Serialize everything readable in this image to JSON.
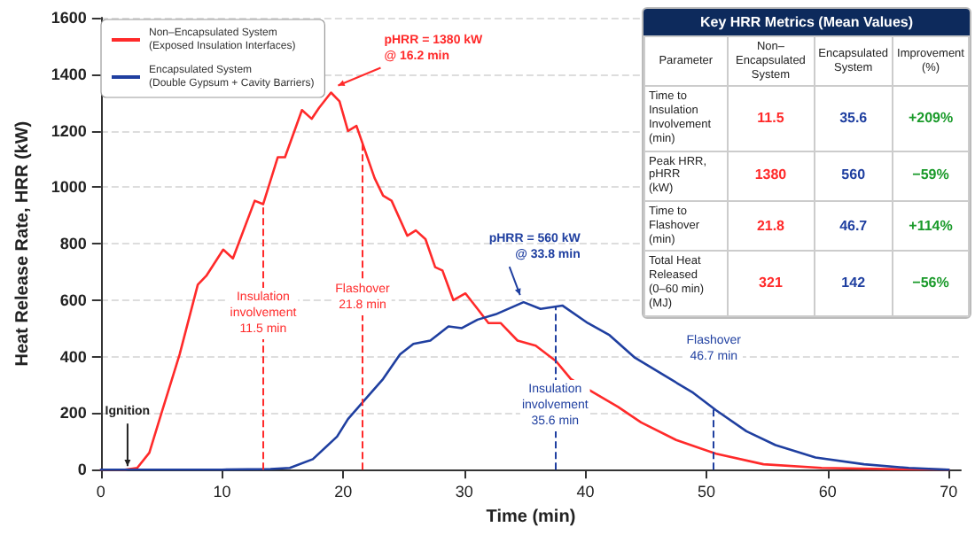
{
  "chart_data": [
    {
      "type": "line",
      "xlabel": "Time (min)",
      "ylabel": "Heat Release Rate, HRR (kW)",
      "xlim": [
        0,
        71
      ],
      "xticks": [
        0,
        10,
        20,
        30,
        40,
        50,
        60,
        70
      ],
      "ylim": [
        0,
        1600
      ],
      "yticks": [
        0,
        200,
        400,
        600,
        800,
        1000,
        1200,
        1400,
        1600
      ],
      "grid": "y",
      "legend": "top left",
      "marker": "none",
      "line_style": "solid",
      "series": [
        {
          "name": "Non–Encapsulated System\n(Exposed Insulation Interfaces)",
          "color": "#ff2a2a",
          "x": [
            0,
            2,
            3,
            4,
            5,
            6.5,
            8,
            8.7,
            10.1,
            10.9,
            12.7,
            13.4,
            14.6,
            15.2,
            16.6,
            17.4,
            18,
            19,
            19.7,
            20.4,
            21.1,
            22.6,
            23.3,
            24,
            25.3,
            26,
            26.8,
            27.6,
            28.2,
            29.1,
            30.1,
            31.1,
            32,
            33,
            34.4,
            35.9,
            37.6,
            38.8,
            40.7,
            42.7,
            44.6,
            47.5,
            50.8,
            54.7,
            59.5,
            65,
            70
          ],
          "values": [
            0,
            0,
            6,
            60,
            200,
            408,
            655,
            686,
            779,
            748,
            952,
            940,
            1106,
            1106,
            1273,
            1242,
            1280,
            1335,
            1304,
            1199,
            1217,
            1032,
            970,
            952,
            828,
            847,
            816,
            717,
            705,
            600,
            624,
            569,
            519,
            519,
            457,
            439,
            383,
            321,
            272,
            222,
            167,
            105,
            56,
            19,
            6,
            2,
            0
          ]
        },
        {
          "name": "Encapsulated System\n(Double Gypsum + Cavity Barriers)",
          "color": "#1f3fa0",
          "x": [
            0,
            10,
            14,
            15.6,
            17.5,
            19.5,
            20.4,
            21.9,
            23.3,
            24.7,
            25.8,
            27.2,
            28.7,
            29.8,
            31.1,
            32.6,
            34.9,
            36.3,
            38.1,
            40.2,
            42,
            44.1,
            46.5,
            48.9,
            50.8,
            53.3,
            55.7,
            59,
            63,
            66.7,
            70
          ],
          "values": [
            0,
            0,
            2,
            6,
            37,
            117,
            179,
            253,
            321,
            408,
            445,
            457,
            507,
            501,
            531,
            550,
            593,
            569,
            581,
            519,
            476,
            396,
            334,
            272,
            210,
            136,
            87,
            43,
            19,
            6,
            0
          ]
        }
      ],
      "ref_lines": [
        {
          "axis": "x",
          "value": 13.4,
          "label": "Insulation\ninvolvement\n11.5 min",
          "color": "#ff2a2a",
          "line_style": "dashed"
        },
        {
          "axis": "x",
          "value": 21.6,
          "label": "Flashover\n21.8 min",
          "color": "#ff2a2a",
          "line_style": "dashed"
        },
        {
          "axis": "x",
          "value": 37.5,
          "label": "Insulation\ninvolvement\n35.6 min",
          "color": "#1f3fa0",
          "line_style": "dashed"
        },
        {
          "axis": "x",
          "value": 50.6,
          "label": "Flashover\n46.7 min",
          "color": "#1f3fa0",
          "line_style": "dashed"
        }
      ],
      "annotations": [
        {
          "text": "pHRR = 1380 kW\n@ 16.2 min",
          "x": 19.0,
          "y": 1335
        },
        {
          "text": "pHRR = 560 kW\n@ 33.8 min",
          "x": 34.9,
          "y": 593
        },
        {
          "text": "Ignition",
          "x": 2.2,
          "y": 0
        }
      ]
    },
    {
      "type": "other",
      "title": "Key HRR Metrics (Mean Values)",
      "annotations": [
        "Parameter",
        "Non–Encapsulated\nSystem",
        "Encapsulated\nSystem",
        "Improvement\n(%)",
        "Time to Insulation\nInvolvement (min)",
        "11.5",
        "35.6",
        "+209%",
        "Peak HRR, pHRR\n(kW)",
        "1380",
        "560",
        "−59%",
        "Time to Flashover\n(min)",
        "21.8",
        "46.7",
        "+114%",
        "Total Heat Released\n(0–60 min) (MJ)",
        "321",
        "142",
        "−56%"
      ]
    }
  ]
}
